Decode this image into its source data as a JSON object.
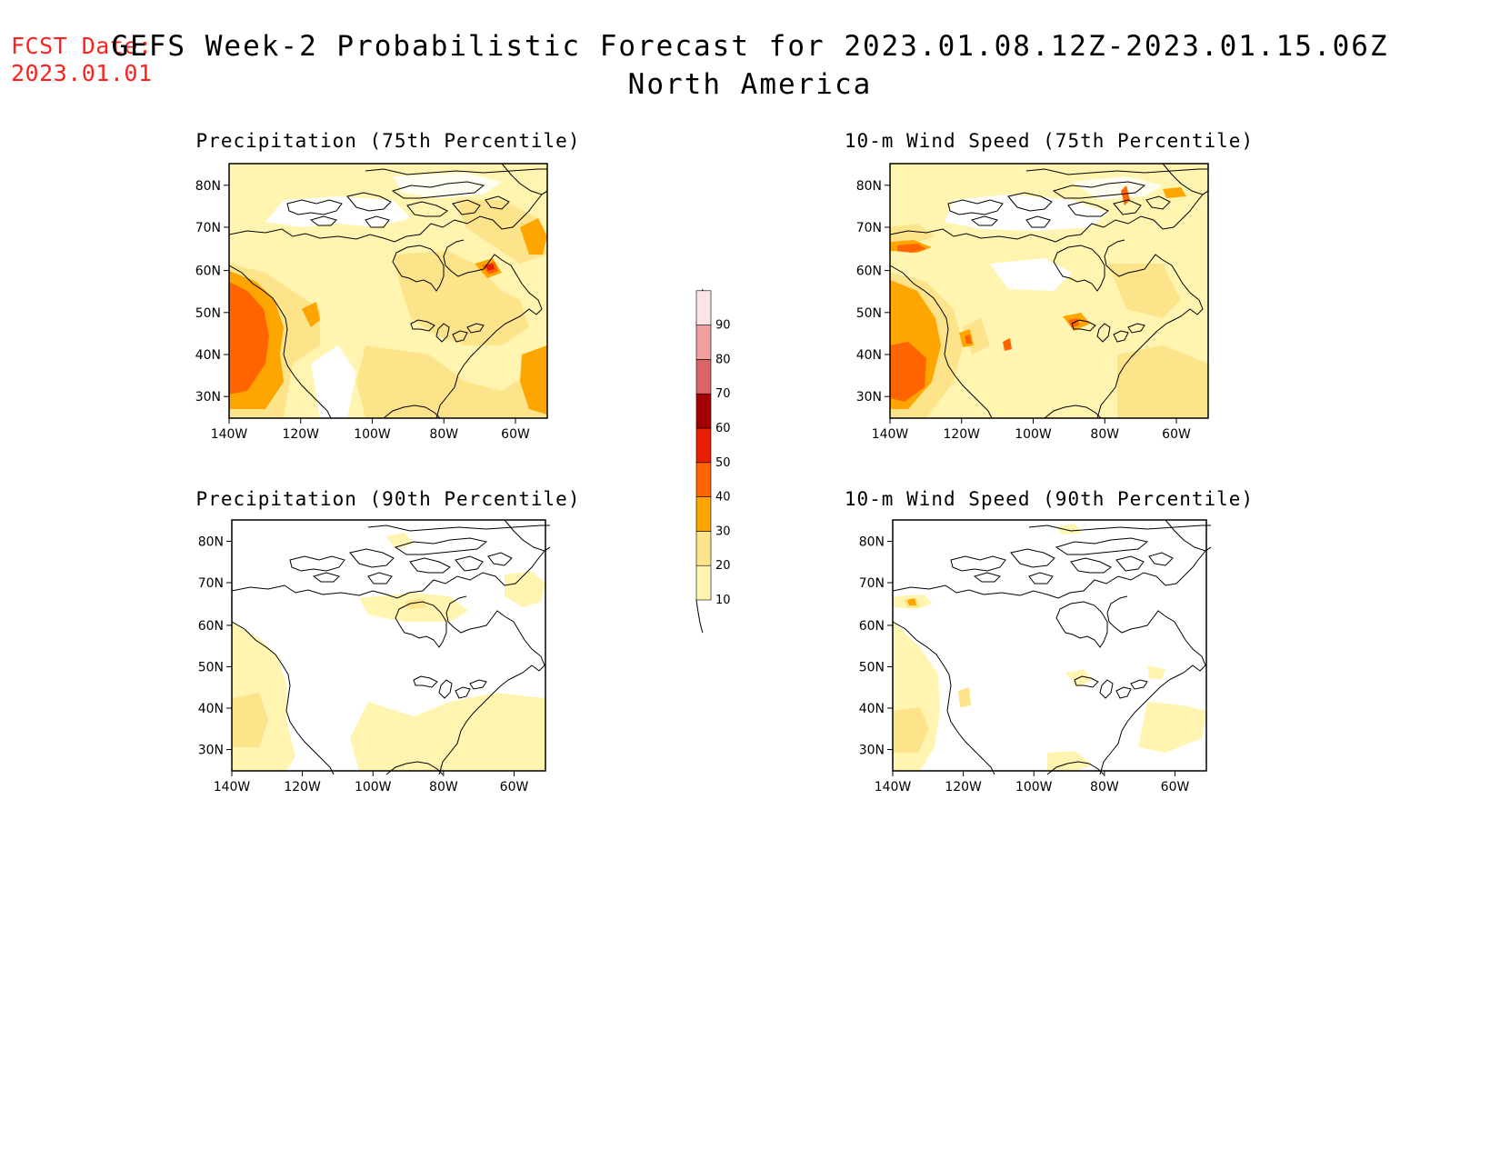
{
  "header": {
    "fcst_label": "FCST Date:",
    "fcst_date": "2023.01.01",
    "title_line1": "GEFS Week-2 Probabilistic Forecast for 2023.01.08.12Z-2023.01.15.06Z",
    "title_line2": "North America"
  },
  "panels": [
    {
      "id": "precip75",
      "title": "Precipitation (75th Percentile)"
    },
    {
      "id": "wind75",
      "title": "10-m Wind Speed (75th Percentile)"
    },
    {
      "id": "precip90",
      "title": "Precipitation (90th Percentile)"
    },
    {
      "id": "wind90",
      "title": "10-m Wind Speed (90th Percentile)"
    }
  ],
  "axes": {
    "lat_ticks": [
      "80N",
      "70N",
      "60N",
      "50N",
      "40N",
      "30N"
    ],
    "lon_ticks": [
      "140W",
      "120W",
      "100W",
      "80W",
      "60W"
    ]
  },
  "colorbar": {
    "levels": [
      "10",
      "20",
      "30",
      "40",
      "50",
      "60",
      "70",
      "80",
      "90"
    ],
    "colors": [
      "#fff5b0",
      "#fde38a",
      "#ffa500",
      "#ff6400",
      "#e81e00",
      "#a50000",
      "#dc6464",
      "#f0a0a0",
      "#fbe4e4"
    ]
  },
  "palette": {
    "p10": "#fff5b0",
    "p20": "#fde38a",
    "p30": "#ffa500",
    "p40": "#ff6400",
    "p50": "#e81e00"
  }
}
